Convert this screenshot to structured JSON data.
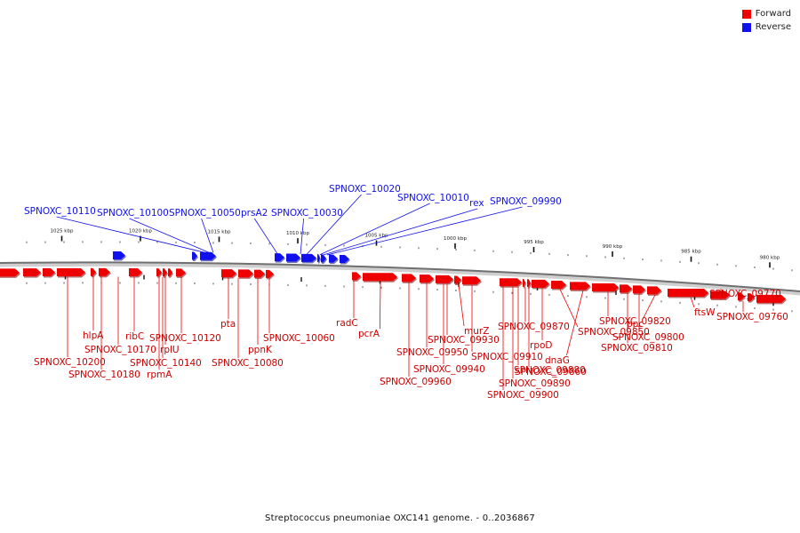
{
  "legend": {
    "forward_label": "Forward",
    "reverse_label": "Reverse",
    "forward_color": "#ee0000",
    "reverse_color": "#1010ee"
  },
  "caption": "Streptococcus pneumoniae OXC141 genome. - 0..2036867",
  "ticks": [
    {
      "kbp": 980,
      "label": "980 kbp"
    },
    {
      "kbp": 985,
      "label": "985 kbp"
    },
    {
      "kbp": 990,
      "label": "990 kbp"
    },
    {
      "kbp": 995,
      "label": "995 kbp"
    },
    {
      "kbp": 1000,
      "label": "1000 kbp"
    },
    {
      "kbp": 1005,
      "label": "1005 kbp"
    },
    {
      "kbp": 1010,
      "label": "1010 kbp"
    },
    {
      "kbp": 1015,
      "label": "1015 kbp"
    },
    {
      "kbp": 1020,
      "label": "1020 kbp"
    },
    {
      "kbp": 1025,
      "label": "1025 kbp"
    }
  ],
  "reverse_labels": [
    "SPNOXC_10110",
    "SPNOXC_10100",
    "SPNOXC_10050",
    "prsA2",
    "SPNOXC_10030",
    "SPNOXC_10020",
    "SPNOXC_10010",
    "rex",
    "SPNOXC_09990"
  ],
  "forward_labels": [
    "SPNOXC_10200",
    "hlpA",
    "SPNOXC_10180",
    "SPNOXC_10170",
    "ribC",
    "rpmA",
    "SPNOXC_10140",
    "rplU",
    "SPNOXC_10120",
    "pta",
    "SPNOXC_10080",
    "ppnK",
    "SPNOXC_10060",
    "radC",
    "pcrA",
    "SPNOXC_09960",
    "SPNOXC_09950",
    "SPNOXC_09940",
    "SPNOXC_09930",
    "murZ",
    "SPNOXC_09910",
    "SPNOXC_09900",
    "SPNOXC_09890",
    "SPNOXC_09880",
    "SPNOXC_09870",
    "SPNOXC_09860",
    "rpoD",
    "SPNOXC_09850",
    "dnaG",
    "SPNOXC_09820",
    "SPNOXC_09810",
    "SPNOXC_09800",
    "ppc",
    "ftsW",
    "SPNOXC_09770",
    "SPNOXC_09760"
  ]
}
